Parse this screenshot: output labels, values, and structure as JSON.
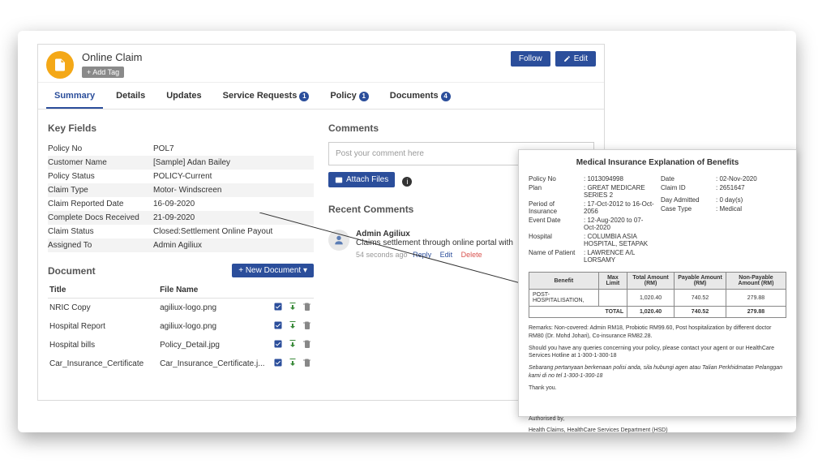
{
  "header": {
    "title": "Online Claim",
    "addTag": "+ Add Tag",
    "follow": "Follow",
    "edit": "Edit"
  },
  "tabs": [
    {
      "label": "Summary",
      "active": true
    },
    {
      "label": "Details"
    },
    {
      "label": "Updates"
    },
    {
      "label": "Service Requests",
      "badge": "1"
    },
    {
      "label": "Policy",
      "badge": "1"
    },
    {
      "label": "Documents",
      "badge": "4"
    }
  ],
  "keyFields": {
    "title": "Key Fields",
    "rows": [
      {
        "k": "Policy No",
        "v": "POL7"
      },
      {
        "k": "Customer Name",
        "v": "[Sample] Adan Bailey"
      },
      {
        "k": "Policy Status",
        "v": "POLICY-Current"
      },
      {
        "k": "Claim Type",
        "v": "Motor- Windscreen"
      },
      {
        "k": "Claim Reported Date",
        "v": "16-09-2020"
      },
      {
        "k": "Complete Docs Received",
        "v": "21-09-2020"
      },
      {
        "k": "Claim Status",
        "v": "Closed:Settlement Online Payout"
      },
      {
        "k": "Assigned To",
        "v": "Admin Agiliux"
      }
    ]
  },
  "documents": {
    "title": "Document",
    "newBtn": "+ New Document ▾",
    "cols": {
      "c1": "Title",
      "c2": "File Name"
    },
    "rows": [
      {
        "title": "NRIC Copy",
        "file": "agiliux-logo.png"
      },
      {
        "title": "Hospital Report",
        "file": "agiliux-logo.png"
      },
      {
        "title": "Hospital bills",
        "file": "Policy_Detail.jpg"
      },
      {
        "title": "Car_Insurance_Certificate",
        "file": "Car_Insurance_Certificate.j..."
      }
    ]
  },
  "comments": {
    "title": "Comments",
    "placeholder": "Post your comment here",
    "attach": "Attach Files",
    "recent": "Recent Comments",
    "recentItem": {
      "name": "Admin Agiliux",
      "text": "Claims settlement through online portal with",
      "ago": "54 seconds ago",
      "reply": "Reply",
      "edit": "Edit",
      "del": "Delete"
    }
  },
  "eob": {
    "heading": "Medical Insurance Explanation of Benefits",
    "left": [
      {
        "k": "Policy No",
        "v": ": 1013094998"
      },
      {
        "k": "Plan",
        "v": ": GREAT MEDICARE SERIES 2"
      },
      {
        "k": "Period of Insurance",
        "v": ": 17-Oct-2012 to 16-Oct-2056"
      },
      {
        "k": "Event Date",
        "v": ": 12-Aug-2020 to 07-Oct-2020"
      },
      {
        "k": "Hospital",
        "v": ": COLUMBIA ASIA HOSPITAL, SETAPAK"
      },
      {
        "k": "Name of Patient",
        "v": ": LAWRENCE A/L LORSAMY"
      }
    ],
    "right": [
      {
        "k": "Date",
        "v": ": 02-Nov-2020"
      },
      {
        "k": "Claim ID",
        "v": ": 2651647"
      },
      {
        "k": "",
        "v": ""
      },
      {
        "k": "",
        "v": ""
      },
      {
        "k": "Day Admitted",
        "v": ": 0 day(s)"
      },
      {
        "k": "Case Type",
        "v": ": Medical"
      }
    ],
    "table": {
      "headers": [
        "Benefit",
        "Max Limit",
        "Total Amount (RM)",
        "Payable Amount (RM)",
        "Non-Payable Amount (RM)"
      ],
      "rows": [
        [
          "POST-HOSPITALISATION,",
          "",
          "1,020.40",
          "740.52",
          "279.88"
        ]
      ],
      "total": [
        "TOTAL",
        "",
        "1,020.40",
        "740.52",
        "279.88"
      ]
    },
    "remarks": "Remarks: Non-covered: Admin RM18, Probiotic RM99.60, Post hospitalization by different doctor RM80 (Dr. Mohd Johari), Co-insurance RM82.28.",
    "p1": "Should you have any queries concerning your policy, please contact your agent or our HealthCare Services Hotline at 1-300-1-300-18",
    "p2": "Sebarang pertanyaan berkenaan polisi anda, sila hubungi agen atau Talian Perkhidmatan Pelanggan kami di no tel 1-300-1-300-18",
    "thank": "Thank you.",
    "auth": "Authorised by,",
    "dept": "Health Claims, HealthCare Services Department (HSD)"
  }
}
